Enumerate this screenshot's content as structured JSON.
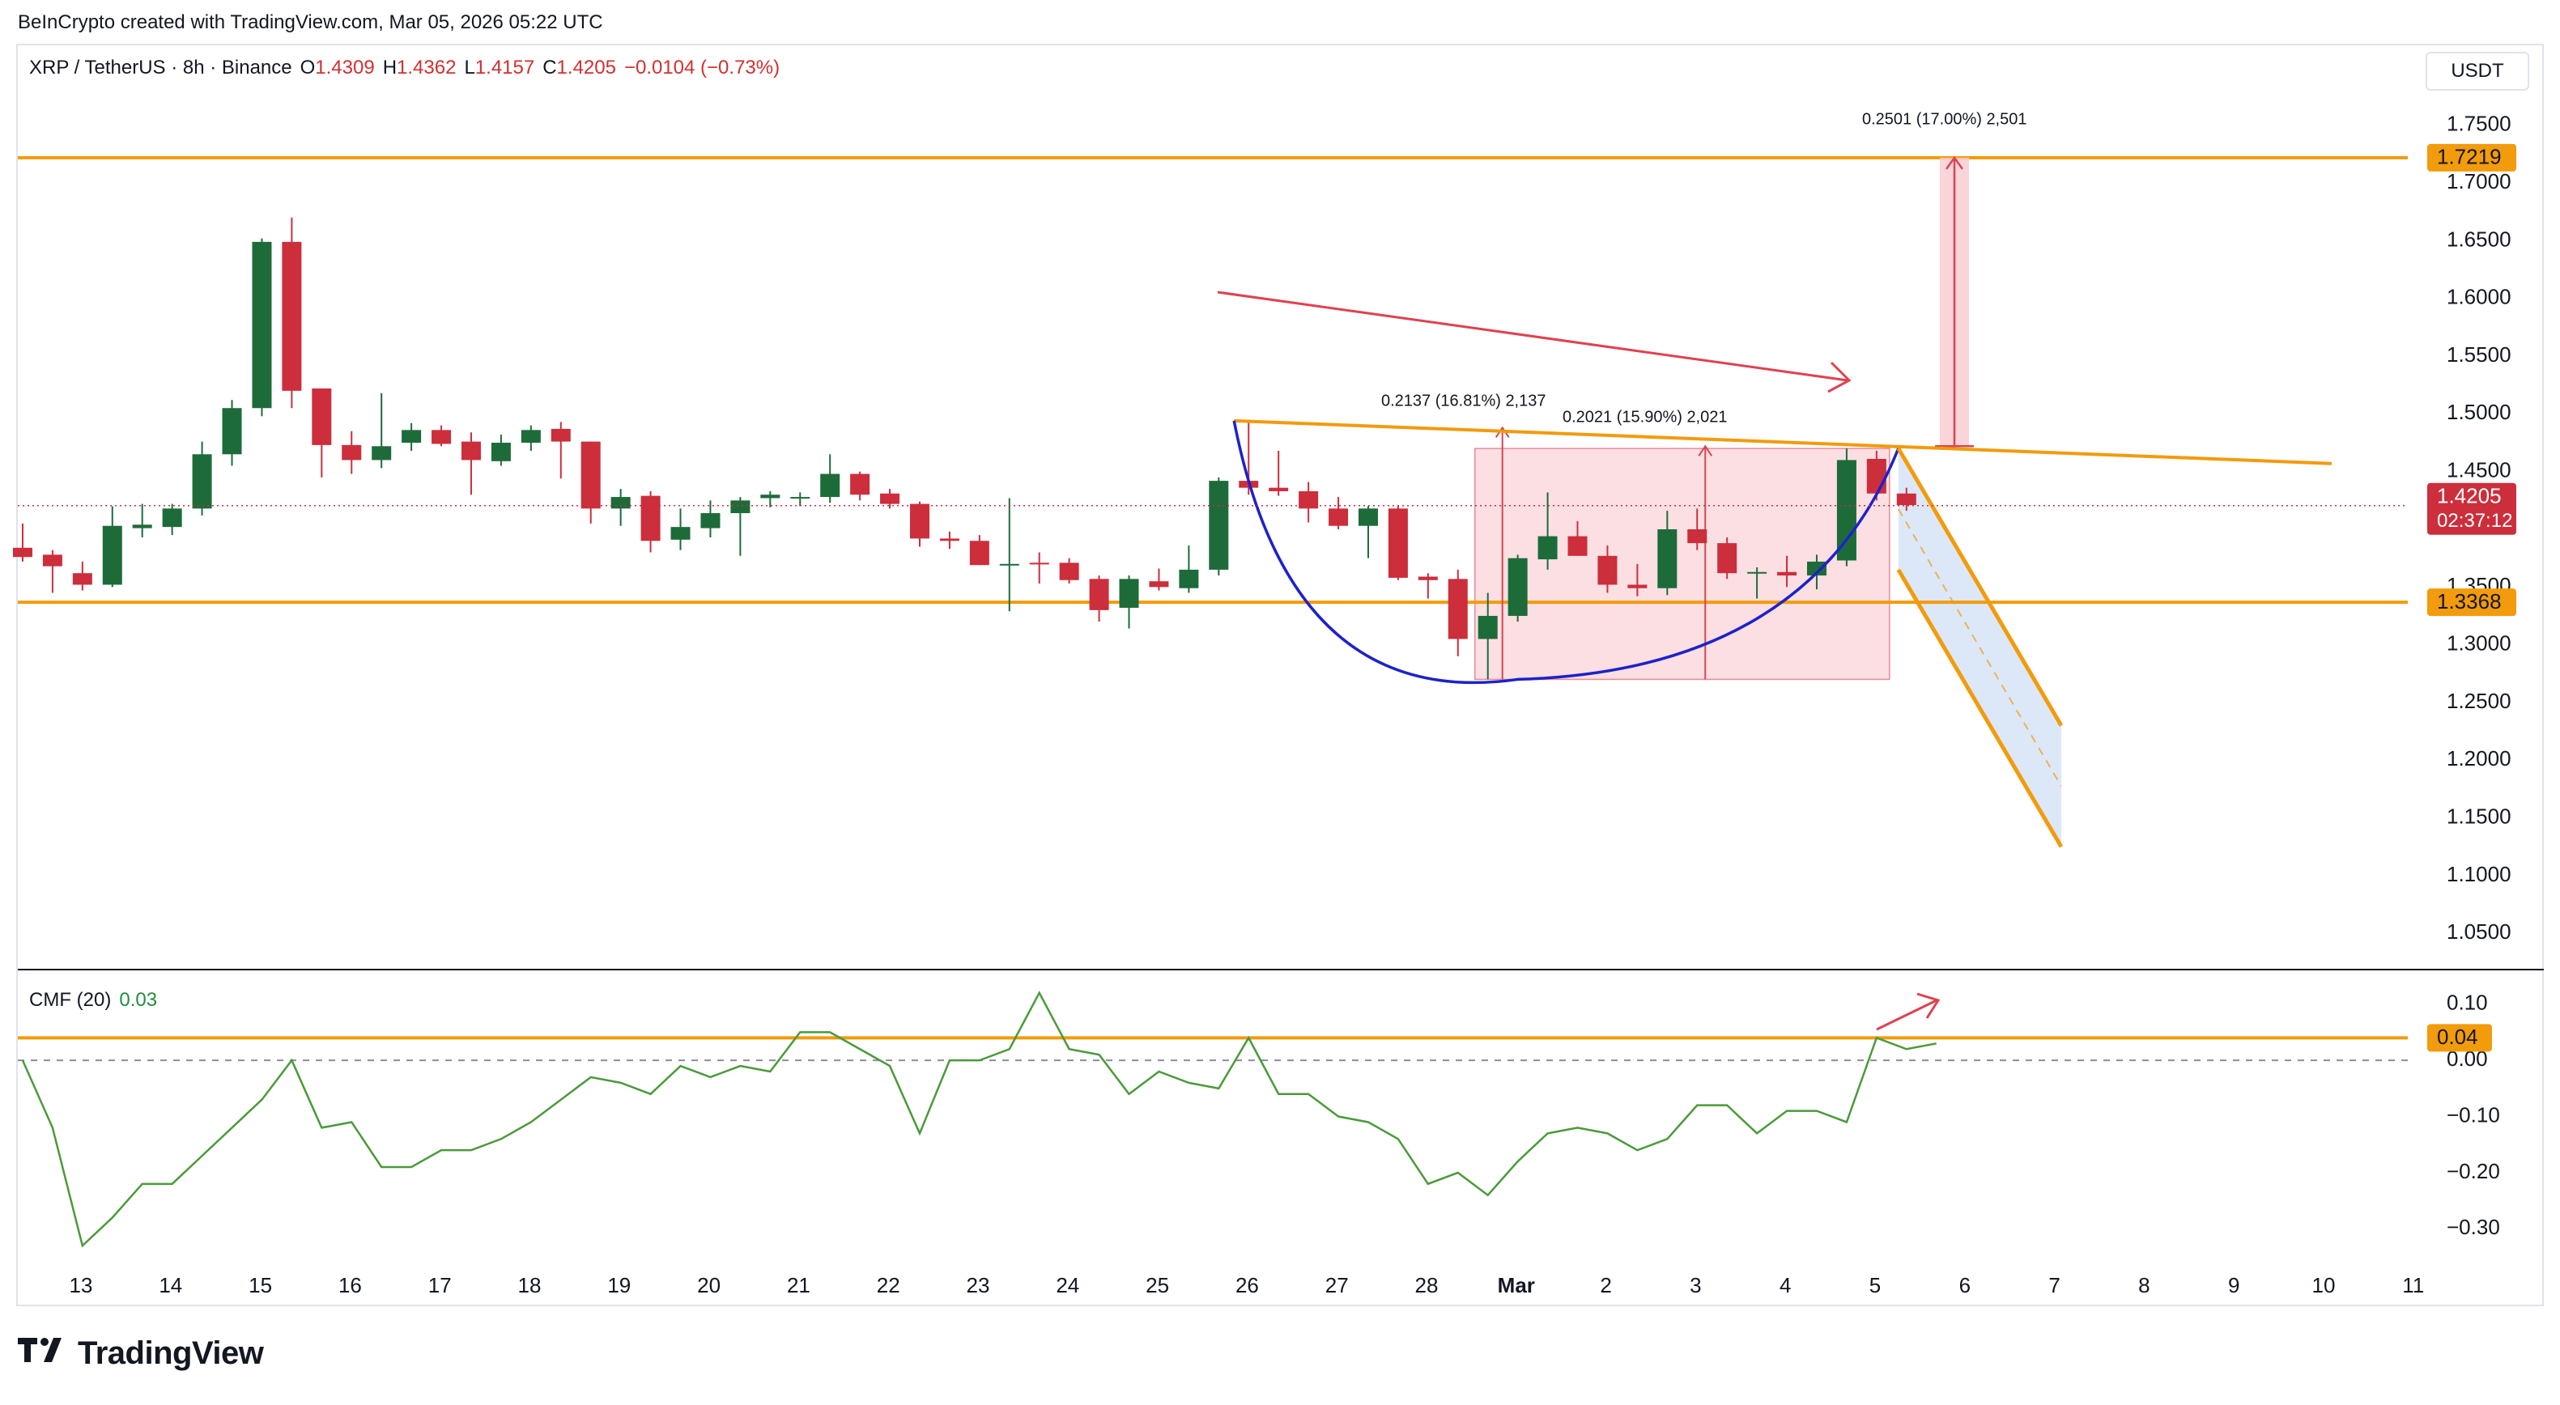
{
  "header": {
    "credit": "BeInCrypto created with TradingView.com, Mar 05, 2026 05:22 UTC"
  },
  "legend": {
    "symbol": "XRP / TetherUS · 8h · Binance",
    "o_label": "O",
    "o_value": "1.4309",
    "h_label": "H",
    "h_value": "1.4362",
    "l_label": "L",
    "l_value": "1.4157",
    "c_label": "C",
    "c_value": "1.4205",
    "change": "−0.0104 (−0.73%)"
  },
  "unit_label": "USDT",
  "cmf_legend": {
    "name": "CMF (20)",
    "value": "0.03"
  },
  "brand": {
    "name": "TradingView"
  },
  "colors": {
    "up": "#1e6b3a",
    "down": "#cc2e3c",
    "level": "#f29b0c",
    "curve": "#1d22c9",
    "cmf": "#4b9a3a",
    "price_tag": "#cc2e3c",
    "zone": "#f8c9cf",
    "channel_fill": "#d6e4f7"
  },
  "chart_data": [
    {
      "type": "candlestick",
      "title": "XRP / TetherUS · 8h · Binance",
      "ylim": [
        1.02,
        1.78
      ],
      "y_ticks": [
        "1.7500",
        "1.7000",
        "1.6500",
        "1.6000",
        "1.5500",
        "1.5000",
        "1.4500",
        "1.3500",
        "1.3000",
        "1.2500",
        "1.2000",
        "1.1500",
        "1.1000",
        "1.0500"
      ],
      "x_ticks": [
        "13",
        "14",
        "15",
        "16",
        "17",
        "18",
        "19",
        "20",
        "21",
        "22",
        "23",
        "24",
        "25",
        "26",
        "27",
        "28",
        "Mar",
        "2",
        "3",
        "4",
        "5",
        "6",
        "7",
        "8",
        "9",
        "10",
        "11"
      ],
      "x_start_day": 12.35,
      "candles": [
        {
          "o": 1.384,
          "h": 1.405,
          "l": 1.372,
          "c": 1.376
        },
        {
          "o": 1.378,
          "h": 1.382,
          "l": 1.345,
          "c": 1.368
        },
        {
          "o": 1.362,
          "h": 1.372,
          "l": 1.347,
          "c": 1.352
        },
        {
          "o": 1.352,
          "h": 1.42,
          "l": 1.35,
          "c": 1.403
        },
        {
          "o": 1.401,
          "h": 1.422,
          "l": 1.393,
          "c": 1.404
        },
        {
          "o": 1.402,
          "h": 1.422,
          "l": 1.395,
          "c": 1.418
        },
        {
          "o": 1.418,
          "h": 1.476,
          "l": 1.412,
          "c": 1.465
        },
        {
          "o": 1.465,
          "h": 1.512,
          "l": 1.455,
          "c": 1.505
        },
        {
          "o": 1.505,
          "h": 1.652,
          "l": 1.498,
          "c": 1.649
        },
        {
          "o": 1.649,
          "h": 1.67,
          "l": 1.505,
          "c": 1.52
        },
        {
          "o": 1.522,
          "h": 1.522,
          "l": 1.445,
          "c": 1.473
        },
        {
          "o": 1.473,
          "h": 1.485,
          "l": 1.448,
          "c": 1.46
        },
        {
          "o": 1.46,
          "h": 1.518,
          "l": 1.453,
          "c": 1.472
        },
        {
          "o": 1.475,
          "h": 1.492,
          "l": 1.468,
          "c": 1.486
        },
        {
          "o": 1.486,
          "h": 1.49,
          "l": 1.472,
          "c": 1.474
        },
        {
          "o": 1.476,
          "h": 1.484,
          "l": 1.43,
          "c": 1.46
        },
        {
          "o": 1.459,
          "h": 1.482,
          "l": 1.455,
          "c": 1.475
        },
        {
          "o": 1.475,
          "h": 1.49,
          "l": 1.468,
          "c": 1.486
        },
        {
          "o": 1.487,
          "h": 1.493,
          "l": 1.444,
          "c": 1.476
        },
        {
          "o": 1.476,
          "h": 1.476,
          "l": 1.405,
          "c": 1.418
        },
        {
          "o": 1.418,
          "h": 1.435,
          "l": 1.403,
          "c": 1.428
        },
        {
          "o": 1.429,
          "h": 1.433,
          "l": 1.38,
          "c": 1.39
        },
        {
          "o": 1.391,
          "h": 1.418,
          "l": 1.382,
          "c": 1.402
        },
        {
          "o": 1.401,
          "h": 1.425,
          "l": 1.393,
          "c": 1.414
        },
        {
          "o": 1.414,
          "h": 1.428,
          "l": 1.377,
          "c": 1.425
        },
        {
          "o": 1.427,
          "h": 1.433,
          "l": 1.419,
          "c": 1.43
        },
        {
          "o": 1.427,
          "h": 1.432,
          "l": 1.42,
          "c": 1.428
        },
        {
          "o": 1.428,
          "h": 1.465,
          "l": 1.423,
          "c": 1.448
        },
        {
          "o": 1.448,
          "h": 1.45,
          "l": 1.425,
          "c": 1.43
        },
        {
          "o": 1.431,
          "h": 1.435,
          "l": 1.418,
          "c": 1.422
        },
        {
          "o": 1.422,
          "h": 1.424,
          "l": 1.385,
          "c": 1.392
        },
        {
          "o": 1.392,
          "h": 1.398,
          "l": 1.383,
          "c": 1.39
        },
        {
          "o": 1.39,
          "h": 1.395,
          "l": 1.369,
          "c": 1.369
        },
        {
          "o": 1.369,
          "h": 1.427,
          "l": 1.329,
          "c": 1.37
        },
        {
          "o": 1.371,
          "h": 1.38,
          "l": 1.353,
          "c": 1.37
        },
        {
          "o": 1.371,
          "h": 1.375,
          "l": 1.353,
          "c": 1.356
        },
        {
          "o": 1.357,
          "h": 1.36,
          "l": 1.32,
          "c": 1.33
        },
        {
          "o": 1.332,
          "h": 1.36,
          "l": 1.314,
          "c": 1.357
        },
        {
          "o": 1.355,
          "h": 1.366,
          "l": 1.347,
          "c": 1.35
        },
        {
          "o": 1.349,
          "h": 1.386,
          "l": 1.345,
          "c": 1.365
        },
        {
          "o": 1.365,
          "h": 1.445,
          "l": 1.36,
          "c": 1.442
        },
        {
          "o": 1.442,
          "h": 1.495,
          "l": 1.43,
          "c": 1.436
        },
        {
          "o": 1.436,
          "h": 1.468,
          "l": 1.429,
          "c": 1.433
        },
        {
          "o": 1.433,
          "h": 1.441,
          "l": 1.406,
          "c": 1.418
        },
        {
          "o": 1.418,
          "h": 1.428,
          "l": 1.4,
          "c": 1.403
        },
        {
          "o": 1.403,
          "h": 1.42,
          "l": 1.375,
          "c": 1.418
        },
        {
          "o": 1.418,
          "h": 1.42,
          "l": 1.356,
          "c": 1.358
        },
        {
          "o": 1.359,
          "h": 1.362,
          "l": 1.34,
          "c": 1.356
        },
        {
          "o": 1.357,
          "h": 1.365,
          "l": 1.29,
          "c": 1.305
        },
        {
          "o": 1.305,
          "h": 1.345,
          "l": 1.27,
          "c": 1.325
        },
        {
          "o": 1.325,
          "h": 1.378,
          "l": 1.32,
          "c": 1.375
        },
        {
          "o": 1.374,
          "h": 1.432,
          "l": 1.365,
          "c": 1.394
        },
        {
          "o": 1.394,
          "h": 1.407,
          "l": 1.378,
          "c": 1.377
        },
        {
          "o": 1.377,
          "h": 1.386,
          "l": 1.345,
          "c": 1.352
        },
        {
          "o": 1.352,
          "h": 1.37,
          "l": 1.342,
          "c": 1.349
        },
        {
          "o": 1.349,
          "h": 1.416,
          "l": 1.343,
          "c": 1.4
        },
        {
          "o": 1.4,
          "h": 1.418,
          "l": 1.382,
          "c": 1.388
        },
        {
          "o": 1.388,
          "h": 1.393,
          "l": 1.357,
          "c": 1.362
        },
        {
          "o": 1.362,
          "h": 1.367,
          "l": 1.34,
          "c": 1.363
        },
        {
          "o": 1.363,
          "h": 1.377,
          "l": 1.35,
          "c": 1.36
        },
        {
          "o": 1.36,
          "h": 1.378,
          "l": 1.348,
          "c": 1.372
        },
        {
          "o": 1.373,
          "h": 1.47,
          "l": 1.368,
          "c": 1.46
        },
        {
          "o": 1.461,
          "h": 1.468,
          "l": 1.425,
          "c": 1.431
        },
        {
          "o": 1.431,
          "h": 1.436,
          "l": 1.416,
          "c": 1.421
        }
      ],
      "levels": [
        1.7219,
        1.3368
      ],
      "level_labels": [
        "1.7219",
        "1.3368"
      ],
      "last_price": {
        "value": "1.4205",
        "countdown": "02:37:12"
      },
      "annotations": {
        "measure_1": "0.2137 (16.81%) 2,137",
        "measure_2": "0.2021 (15.90%) 2,021",
        "target": "0.2501 (17.00%) 2,501"
      }
    },
    {
      "type": "line",
      "title": "CMF (20)",
      "ylim": [
        -0.36,
        0.15
      ],
      "y_ticks": [
        "0.10",
        "0.00",
        "−0.10",
        "−0.20",
        "−0.30"
      ],
      "series": [
        {
          "values": [
            0.0,
            -0.12,
            -0.33,
            -0.28,
            -0.22,
            -0.22,
            -0.17,
            -0.12,
            -0.07,
            0.0,
            -0.12,
            -0.11,
            -0.19,
            -0.19,
            -0.16,
            -0.16,
            -0.14,
            -0.11,
            -0.07,
            -0.03,
            -0.04,
            -0.06,
            -0.01,
            -0.03,
            -0.01,
            -0.02,
            0.05,
            0.05,
            0.02,
            -0.01,
            -0.13,
            0.0,
            0.0,
            0.02,
            0.12,
            0.02,
            0.01,
            -0.06,
            -0.02,
            -0.04,
            -0.05,
            0.04,
            -0.06,
            -0.06,
            -0.1,
            -0.11,
            -0.14,
            -0.22,
            -0.2,
            -0.24,
            -0.18,
            -0.13,
            -0.12,
            -0.13,
            -0.16,
            -0.14,
            -0.08,
            -0.08,
            -0.13,
            -0.09,
            -0.09,
            -0.11,
            0.04,
            0.02,
            0.03
          ]
        }
      ],
      "level": 0.04,
      "level_label": "0.04"
    }
  ]
}
